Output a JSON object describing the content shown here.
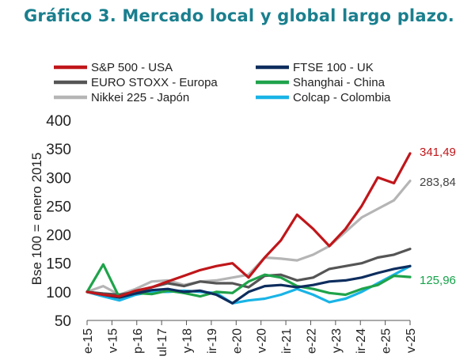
{
  "title": "Gráfico 3. Mercado local y global largo plazo.",
  "chart_data": {
    "type": "line",
    "title": "Gráfico 3. Mercado local y global largo plazo.",
    "xlabel": "",
    "ylabel": "Bse 100 = enero 2015",
    "ylim": [
      50,
      400
    ],
    "yticks": [
      "400",
      "350",
      "300",
      "250",
      "200",
      "150",
      "100",
      "50"
    ],
    "xticks": [
      "e-15",
      "v-15",
      "p-16",
      "ul-17",
      "y-18",
      "ir-19",
      "e-20",
      "v-20",
      "ir-21",
      "e-22",
      "y-23",
      "ir-24",
      "e-25",
      "v-25"
    ],
    "legend_position": "top",
    "end_labels": [
      {
        "text": "341,49",
        "color": "#c0161a",
        "value": 341.49
      },
      {
        "text": "283,84",
        "color": "#444444",
        "value": 283.84
      },
      {
        "text": "125,96",
        "color": "#15a34a",
        "value": 125.96
      }
    ],
    "series": [
      {
        "name": "S&P 500 - USA",
        "color": "#c0161a",
        "values": [
          100,
          95,
          92,
          102,
          108,
          118,
          128,
          138,
          145,
          150,
          125,
          160,
          190,
          235,
          210,
          180,
          210,
          250,
          300,
          290,
          342
        ]
      },
      {
        "name": "FTSE 100 - UK",
        "color": "#0d2d5e",
        "values": [
          100,
          95,
          90,
          97,
          103,
          105,
          100,
          102,
          95,
          80,
          100,
          110,
          112,
          108,
          112,
          118,
          120,
          125,
          133,
          140,
          145
        ]
      },
      {
        "name": "EURO STOXX - Europa",
        "color": "#555555",
        "values": [
          100,
          97,
          95,
          100,
          108,
          115,
          110,
          118,
          115,
          115,
          108,
          128,
          130,
          120,
          125,
          140,
          145,
          150,
          160,
          165,
          175
        ]
      },
      {
        "name": "Shanghai - China",
        "color": "#1fa34a",
        "values": [
          100,
          148,
          90,
          98,
          96,
          102,
          98,
          92,
          100,
          98,
          118,
          130,
          125,
          110,
          105,
          98,
          95,
          105,
          112,
          128,
          126
        ]
      },
      {
        "name": "Nikkei 225 - Japón",
        "color": "#b5b5b5",
        "values": [
          100,
          110,
          95,
          105,
          118,
          120,
          112,
          118,
          120,
          125,
          130,
          160,
          158,
          155,
          165,
          180,
          205,
          230,
          245,
          260,
          294
        ]
      },
      {
        "name": "Colcap - Colombia",
        "color": "#19b4e6",
        "values": [
          100,
          92,
          85,
          95,
          100,
          100,
          102,
          100,
          98,
          80,
          85,
          88,
          95,
          105,
          95,
          82,
          88,
          100,
          115,
          130,
          145
        ]
      }
    ]
  }
}
